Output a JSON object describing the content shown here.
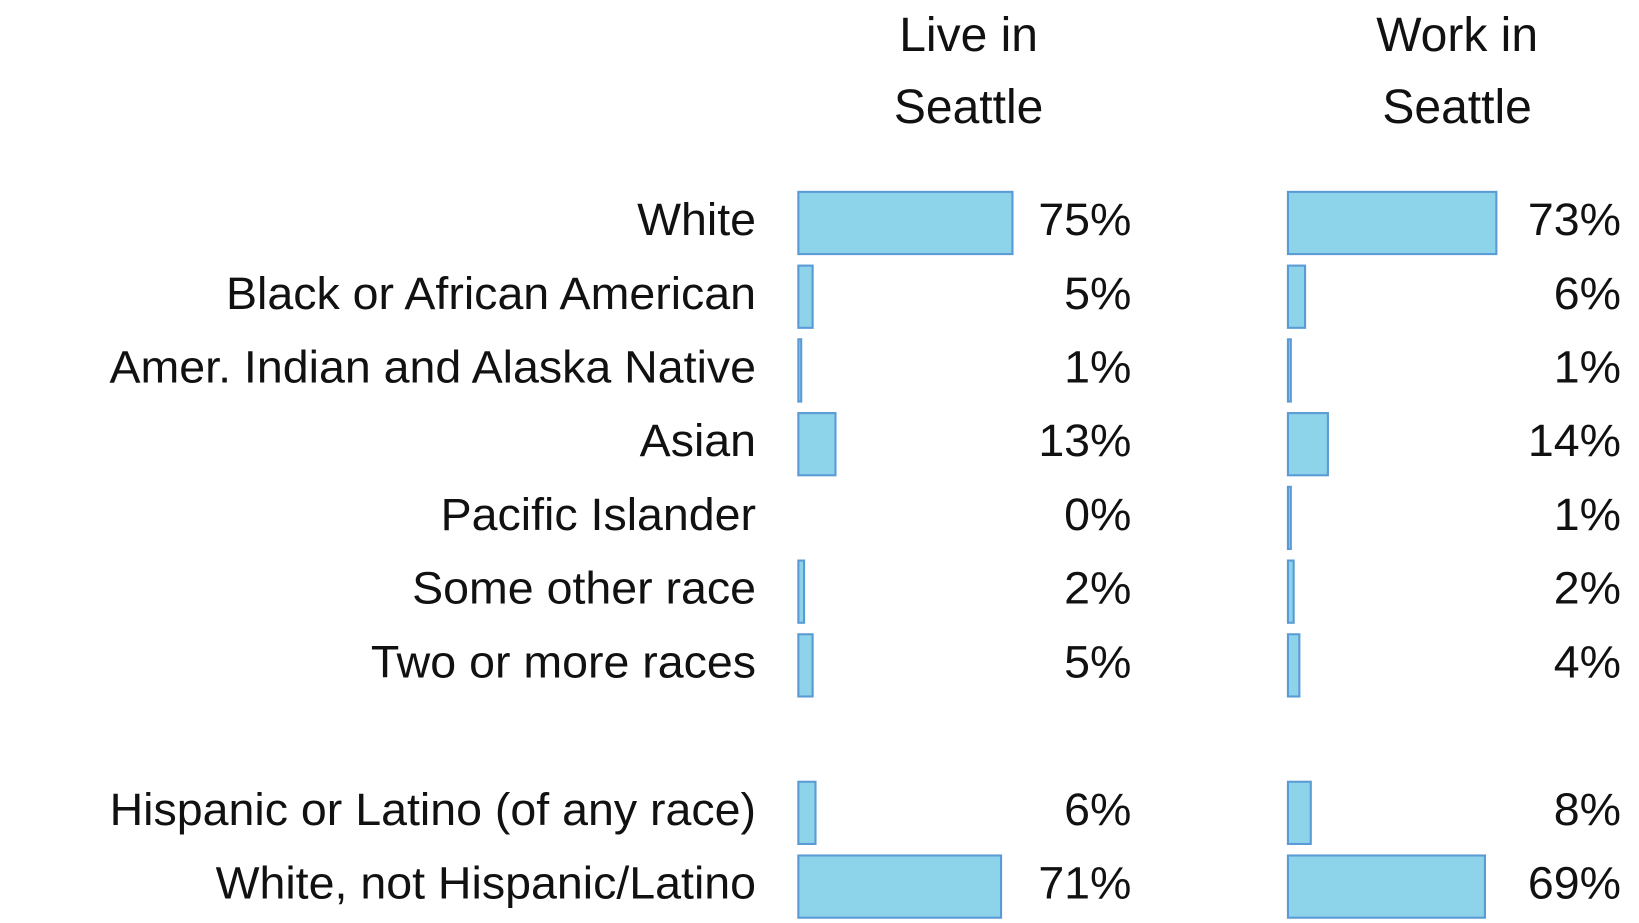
{
  "chart_data": {
    "type": "bar",
    "categories": [
      "White",
      "Black or African American",
      "Amer. Indian and Alaska Native",
      "Asian",
      "Pacific Islander",
      "Some other race",
      "Two or more races",
      null,
      "Hispanic or Latino (of any race)",
      "White, not Hispanic/Latino"
    ],
    "series": [
      {
        "name": "Live in Seattle",
        "color": "#8dd3ea",
        "values": [
          75,
          5,
          1,
          13,
          0,
          2,
          5,
          null,
          6,
          71
        ],
        "value_labels": [
          "75%",
          "5%",
          "1%",
          "13%",
          "0%",
          "2%",
          "5%",
          null,
          "6%",
          "71%"
        ]
      },
      {
        "name": "Work in Seattle",
        "color": "#8dd3ea",
        "values": [
          73,
          6,
          1,
          14,
          1,
          2,
          4,
          null,
          8,
          69
        ],
        "value_labels": [
          "73%",
          "6%",
          "1%",
          "14%",
          "1%",
          "2%",
          "4%",
          null,
          "8%",
          "69%"
        ]
      }
    ]
  }
}
